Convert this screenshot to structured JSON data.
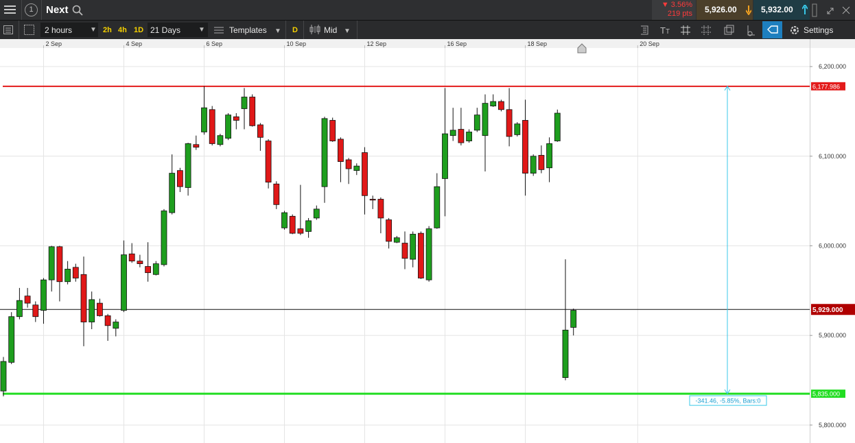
{
  "toolbar": {
    "badge": "1",
    "instrument": "Next",
    "change_pct": "▼ 3.56%",
    "change_pts": "219 pts",
    "sell": "5,926.00",
    "buy": "5,932.00",
    "interval": "2 hours",
    "quick_intervals": [
      "2h",
      "4h",
      "1D"
    ],
    "range": "21 Days",
    "templates": "Templates",
    "daily": "D",
    "price_type": "Mid",
    "settings": "Settings"
  },
  "chart_data": {
    "type": "candlestick",
    "up_color": "#1e9e1e",
    "down_color": "#e01818",
    "categories": [
      null,
      null,
      null,
      null,
      null,
      "2 Sep",
      null,
      null,
      null,
      null,
      null,
      null,
      null,
      null,
      null,
      "4 Sep",
      null,
      null,
      null,
      null,
      null,
      null,
      null,
      null,
      null,
      "6 Sep",
      null,
      null,
      null,
      null,
      null,
      null,
      null,
      null,
      null,
      "10 Sep",
      null,
      null,
      null,
      null,
      null,
      null,
      null,
      null,
      null,
      "12 Sep",
      null,
      null,
      null,
      null,
      null,
      null,
      null,
      null,
      null,
      "16 Sep",
      null,
      null,
      null,
      null,
      null,
      null,
      null,
      null,
      null,
      "18 Sep",
      null,
      null,
      null,
      null,
      null,
      null
    ],
    "future_categories": [
      "20 Sep"
    ],
    "open": [
      5838,
      5870,
      5921,
      5944,
      5934,
      5928,
      5962,
      5999,
      5960,
      5976,
      5968,
      5915,
      5936,
      5922,
      5908,
      5928,
      5991,
      5983,
      5977,
      5968,
      5979,
      6037,
      6084,
      6065,
      6113,
      6127,
      6152,
      6113,
      6120,
      6144,
      6153,
      6166,
      6135,
      6117,
      6069,
      6020,
      6033,
      6019,
      6016,
      6031,
      6066,
      6140,
      6119,
      6096,
      6084,
      6104,
      6052,
      6052,
      6029,
      6004,
      6003,
      5985,
      6014,
      5962,
      6020,
      6075,
      6123,
      6130,
      6117,
      6129,
      6123,
      6156,
      6161,
      6152,
      6124,
      6140,
      6081,
      6101,
      6087,
      6117,
      5853,
      5909
    ],
    "high": [
      5876,
      5926,
      5953,
      5953,
      5938,
      5964,
      6000,
      6000,
      5983,
      5980,
      5988,
      5949,
      5941,
      5924,
      5918,
      6006,
      6003,
      5990,
      6004,
      5983,
      6041,
      6102,
      6087,
      6115,
      6123,
      6178,
      6156,
      6125,
      6148,
      6148,
      6176,
      6169,
      6137,
      6119,
      6072,
      6039,
      6035,
      6068,
      6031,
      6045,
      6144,
      6143,
      6121,
      6098,
      6092,
      6110,
      6056,
      6054,
      6031,
      6011,
      6016,
      6016,
      6016,
      6022,
      6081,
      6176,
      6154,
      6154,
      6130,
      6154,
      6169,
      6169,
      6163,
      6176,
      6138,
      6163,
      6102,
      6112,
      6121,
      6152,
      5985,
      5930
    ],
    "low": [
      5832,
      5868,
      5918,
      5931,
      5915,
      5913,
      5949,
      5938,
      5957,
      5960,
      5888,
      5907,
      5921,
      5894,
      5899,
      5926,
      5981,
      5976,
      5960,
      5967,
      5977,
      6035,
      6060,
      6056,
      6107,
      6124,
      6112,
      6111,
      6118,
      6130,
      6130,
      6133,
      6106,
      6064,
      6041,
      6018,
      6013,
      6012,
      6009,
      6029,
      6048,
      6116,
      6071,
      6069,
      6079,
      6035,
      6041,
      6014,
      5997,
      6003,
      5974,
      5976,
      5963,
      5960,
      6019,
      6033,
      6117,
      6112,
      6115,
      6127,
      6083,
      6155,
      6150,
      6111,
      6122,
      6056,
      6078,
      6081,
      6071,
      6116,
      5850,
      5900
    ],
    "close": [
      5871,
      5921,
      5939,
      5936,
      5921,
      5962,
      5999,
      5960,
      5974,
      5964,
      5915,
      5940,
      5922,
      5911,
      5915,
      5990,
      5983,
      5980,
      5970,
      5980,
      6039,
      6081,
      6066,
      6114,
      6110,
      6154,
      6114,
      6123,
      6146,
      6140,
      6166,
      6134,
      6121,
      6071,
      6046,
      6037,
      6014,
      6014,
      6028,
      6041,
      6142,
      6117,
      6094,
      6086,
      6089,
      6056,
      6051,
      6031,
      6005,
      6009,
      5986,
      6013,
      5964,
      6019,
      6066,
      6125,
      6129,
      6115,
      6127,
      6146,
      6159,
      6161,
      6152,
      6122,
      6136,
      6081,
      6100,
      6085,
      6114,
      6148,
      5906,
      5928
    ],
    "ylim": [
      5780,
      6220.7
    ],
    "yticks": [
      {
        "value": 5800,
        "label": "5,800.000"
      },
      {
        "value": 5900,
        "label": "5,900.000"
      },
      {
        "value": 6000,
        "label": "6,000.000"
      },
      {
        "value": 6100,
        "label": "6,100.000"
      },
      {
        "value": 6200,
        "label": "6,200.000"
      }
    ],
    "grid": true,
    "hlines": [
      {
        "value": 6177.986,
        "label": "6,177.986",
        "color": "#e31b1b"
      },
      {
        "value": 5835,
        "label": "5,835.000",
        "color": "#22dd22"
      },
      {
        "value": 5929,
        "label": "5,929.000",
        "color": "#111111"
      }
    ],
    "measurement": "-341.46, -5.85%, Bars:0"
  }
}
